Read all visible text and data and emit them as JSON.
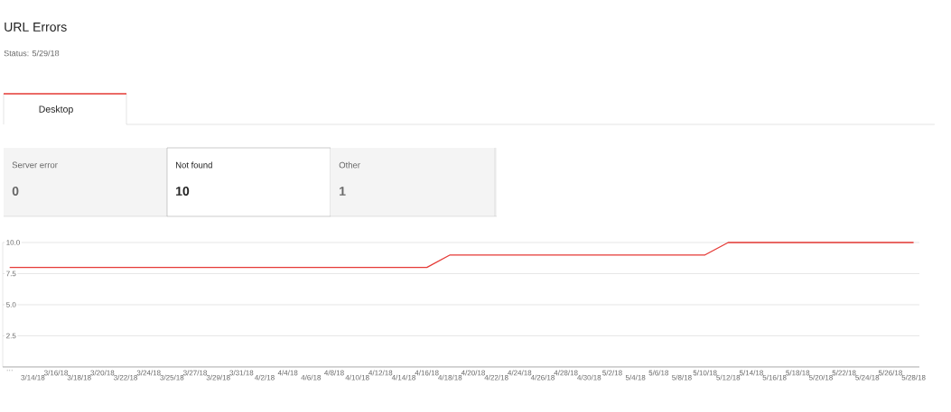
{
  "chart_data": {
    "type": "line",
    "title": "URL Errors",
    "subtitle": "Status: 5/29/18",
    "annotations": [
      "Desktop",
      "Server error",
      "0",
      "Not found",
      "10",
      "Other",
      "1"
    ],
    "categories": [
      "…",
      "3/14/18",
      "3/16/18",
      "3/18/18",
      "3/20/18",
      "3/22/18",
      "3/24/18",
      "3/25/18",
      "3/27/18",
      "3/29/18",
      "3/31/18",
      "4/2/18",
      "4/4/18",
      "4/6/18",
      "4/8/18",
      "4/10/18",
      "4/12/18",
      "4/14/18",
      "4/16/18",
      "4/18/18",
      "4/20/18",
      "4/22/18",
      "4/24/18",
      "4/26/18",
      "4/28/18",
      "4/30/18",
      "5/2/18",
      "5/4/18",
      "5/6/18",
      "5/8/18",
      "5/10/18",
      "5/12/18",
      "5/14/18",
      "5/16/18",
      "5/18/18",
      "5/20/18",
      "5/22/18",
      "5/24/18",
      "5/26/18",
      "5/28/18"
    ],
    "values": [
      8,
      8,
      8,
      8,
      8,
      8,
      8,
      8,
      8,
      8,
      8,
      8,
      8,
      8,
      8,
      8,
      8,
      8,
      8,
      9,
      9,
      9,
      9,
      9,
      9,
      9,
      9,
      9,
      9,
      9,
      9,
      10,
      10,
      10,
      10,
      10,
      10,
      10,
      10,
      10
    ],
    "color": "#e53935",
    "ylim": [
      0,
      10
    ],
    "yticks": [
      {
        "value": 2.5,
        "label": "2.5"
      },
      {
        "value": 5,
        "label": "5.0"
      },
      {
        "value": 7.5,
        "label": "7.5"
      },
      {
        "value": 10,
        "label": "10.0"
      }
    ],
    "grid": "y"
  }
}
